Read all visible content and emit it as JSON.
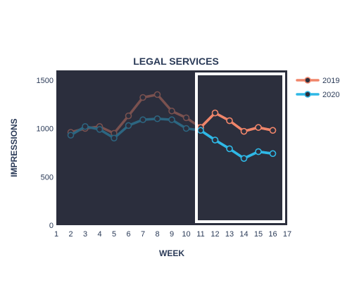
{
  "chart_data": {
    "type": "line",
    "title": "LEGAL SERVICES",
    "xlabel": "WEEK",
    "ylabel": "IMPRESSIONS",
    "xlim": [
      1,
      17
    ],
    "ylim": [
      0,
      1600
    ],
    "x_ticks": [
      1,
      2,
      3,
      4,
      5,
      6,
      7,
      8,
      9,
      10,
      11,
      12,
      13,
      14,
      15,
      16,
      17
    ],
    "y_ticks": [
      0,
      500,
      1000,
      1500
    ],
    "grid": false,
    "legend_position": "top-right",
    "highlight_range": [
      11,
      17
    ],
    "series": [
      {
        "name": "2019",
        "color": "#f0856a",
        "x": [
          2,
          3,
          4,
          5,
          6,
          7,
          8,
          9,
          10,
          11,
          12,
          13,
          14,
          15,
          16
        ],
        "y": [
          960,
          1000,
          1020,
          950,
          1130,
          1320,
          1350,
          1180,
          1110,
          1010,
          1160,
          1080,
          970,
          1010,
          980
        ]
      },
      {
        "name": "2020",
        "color": "#2fb8e6",
        "x": [
          2,
          3,
          4,
          5,
          6,
          7,
          8,
          9,
          10,
          11,
          12,
          13,
          14,
          15,
          16
        ],
        "y": [
          930,
          1020,
          990,
          900,
          1030,
          1090,
          1100,
          1090,
          1000,
          980,
          880,
          790,
          690,
          760,
          740
        ]
      }
    ]
  },
  "colors": {
    "plot_background": "#2c2f3d",
    "highlight_border": "#ffffff",
    "text": "#2a3a57"
  }
}
